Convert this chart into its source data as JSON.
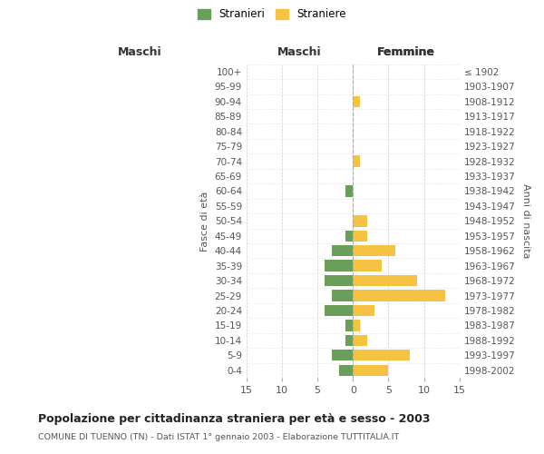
{
  "age_groups": [
    "100+",
    "95-99",
    "90-94",
    "85-89",
    "80-84",
    "75-79",
    "70-74",
    "65-69",
    "60-64",
    "55-59",
    "50-54",
    "45-49",
    "40-44",
    "35-39",
    "30-34",
    "25-29",
    "20-24",
    "15-19",
    "10-14",
    "5-9",
    "0-4"
  ],
  "birth_years": [
    "≤ 1902",
    "1903-1907",
    "1908-1912",
    "1913-1917",
    "1918-1922",
    "1923-1927",
    "1928-1932",
    "1933-1937",
    "1938-1942",
    "1943-1947",
    "1948-1952",
    "1953-1957",
    "1958-1962",
    "1963-1967",
    "1968-1972",
    "1973-1977",
    "1978-1982",
    "1983-1987",
    "1988-1992",
    "1993-1997",
    "1998-2002"
  ],
  "males": [
    0,
    0,
    0,
    0,
    0,
    0,
    0,
    0,
    1,
    0,
    0,
    1,
    3,
    4,
    4,
    3,
    4,
    1,
    1,
    3,
    2
  ],
  "females": [
    0,
    0,
    1,
    0,
    0,
    0,
    1,
    0,
    0,
    0,
    2,
    2,
    6,
    4,
    9,
    13,
    3,
    1,
    2,
    8,
    5
  ],
  "male_color": "#6a9e5a",
  "female_color": "#f5c242",
  "background_color": "#ffffff",
  "grid_color": "#cccccc",
  "title": "Popolazione per cittadinanza straniera per età e sesso - 2003",
  "subtitle": "COMUNE DI TUENNO (TN) - Dati ISTAT 1° gennaio 2003 - Elaborazione TUTTITALIA.IT",
  "header_left": "Maschi",
  "header_right": "Femmine",
  "ylabel_left": "Fasce di età",
  "ylabel_right": "Anni di nascita",
  "legend_male": "Stranieri",
  "legend_female": "Straniere",
  "xlim": 15
}
